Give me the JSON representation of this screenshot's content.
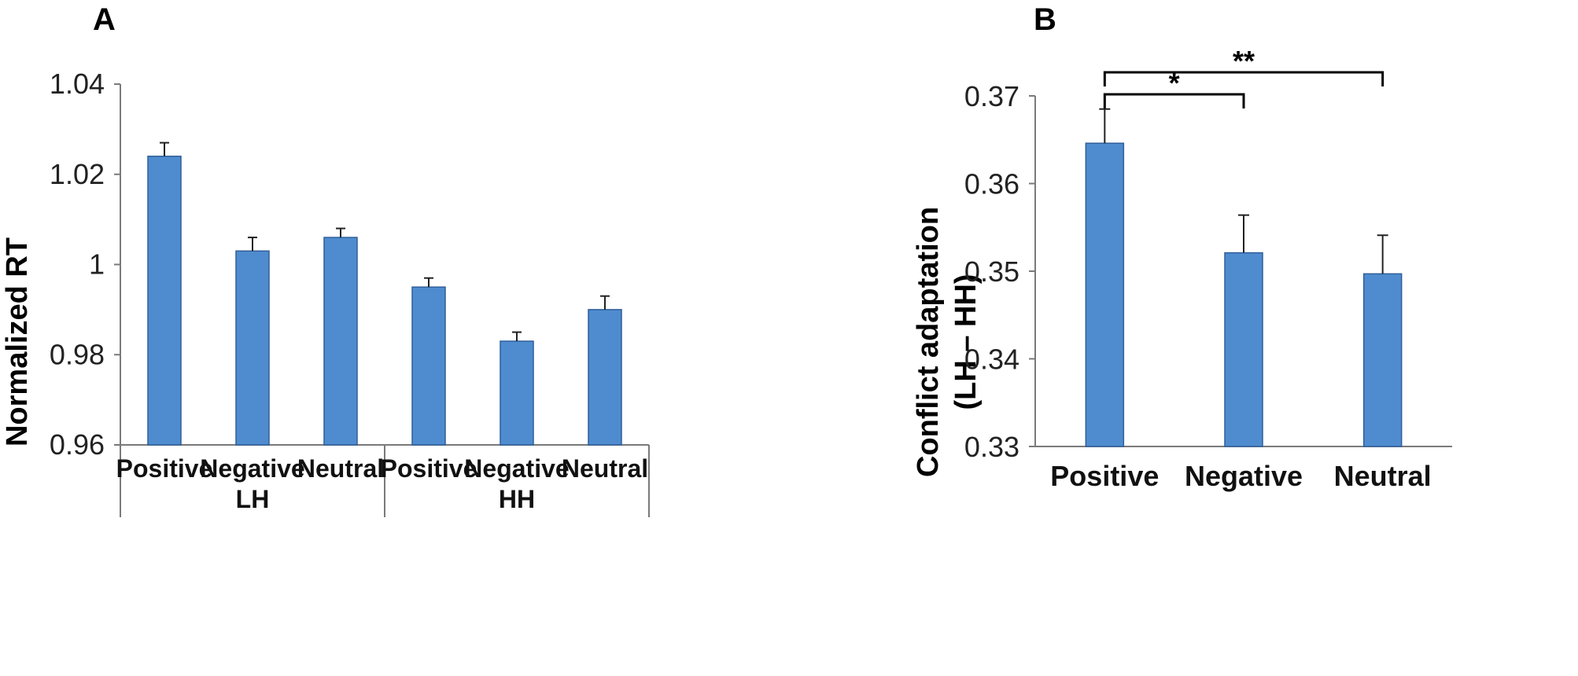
{
  "colors": {
    "bar": "#4f8ccf",
    "bar_edge": "#2f5f9a"
  },
  "chart_data": [
    {
      "panel_label": "A",
      "type": "bar",
      "ylabel": "Normalized RT",
      "ylim": [
        0.96,
        1.04
      ],
      "yticks": [
        0.96,
        0.98,
        1.0,
        1.02,
        1.04
      ],
      "ytick_labels": [
        "0.96",
        "0.98",
        "1",
        "1.02",
        "1.04"
      ],
      "groups": [
        {
          "label": "LH",
          "categories": [
            "Positive",
            "Negative",
            "Neutral"
          ],
          "values": [
            1.024,
            1.003,
            1.006
          ],
          "errors": [
            0.003,
            0.003,
            0.002
          ]
        },
        {
          "label": "HH",
          "categories": [
            "Positive",
            "Negative",
            "Neutral"
          ],
          "values": [
            0.995,
            0.983,
            0.99
          ],
          "errors": [
            0.002,
            0.002,
            0.003
          ]
        }
      ]
    },
    {
      "panel_label": "B",
      "type": "bar",
      "ylabel_lines": [
        "Conflict adaptation",
        "(LH – HH)"
      ],
      "ylim": [
        0.33,
        0.37
      ],
      "yticks": [
        0.33,
        0.34,
        0.35,
        0.36,
        0.37
      ],
      "ytick_labels": [
        "0.33",
        "0.34",
        "0.35",
        "0.36",
        "0.37"
      ],
      "categories": [
        "Positive",
        "Negative",
        "Neutral"
      ],
      "values": [
        0.3646,
        0.3521,
        0.3497
      ],
      "errors": [
        0.0039,
        0.0043,
        0.0044
      ],
      "significance": [
        {
          "from": 0,
          "to": 1,
          "label": "*"
        },
        {
          "from": 0,
          "to": 2,
          "label": "**"
        }
      ]
    }
  ]
}
